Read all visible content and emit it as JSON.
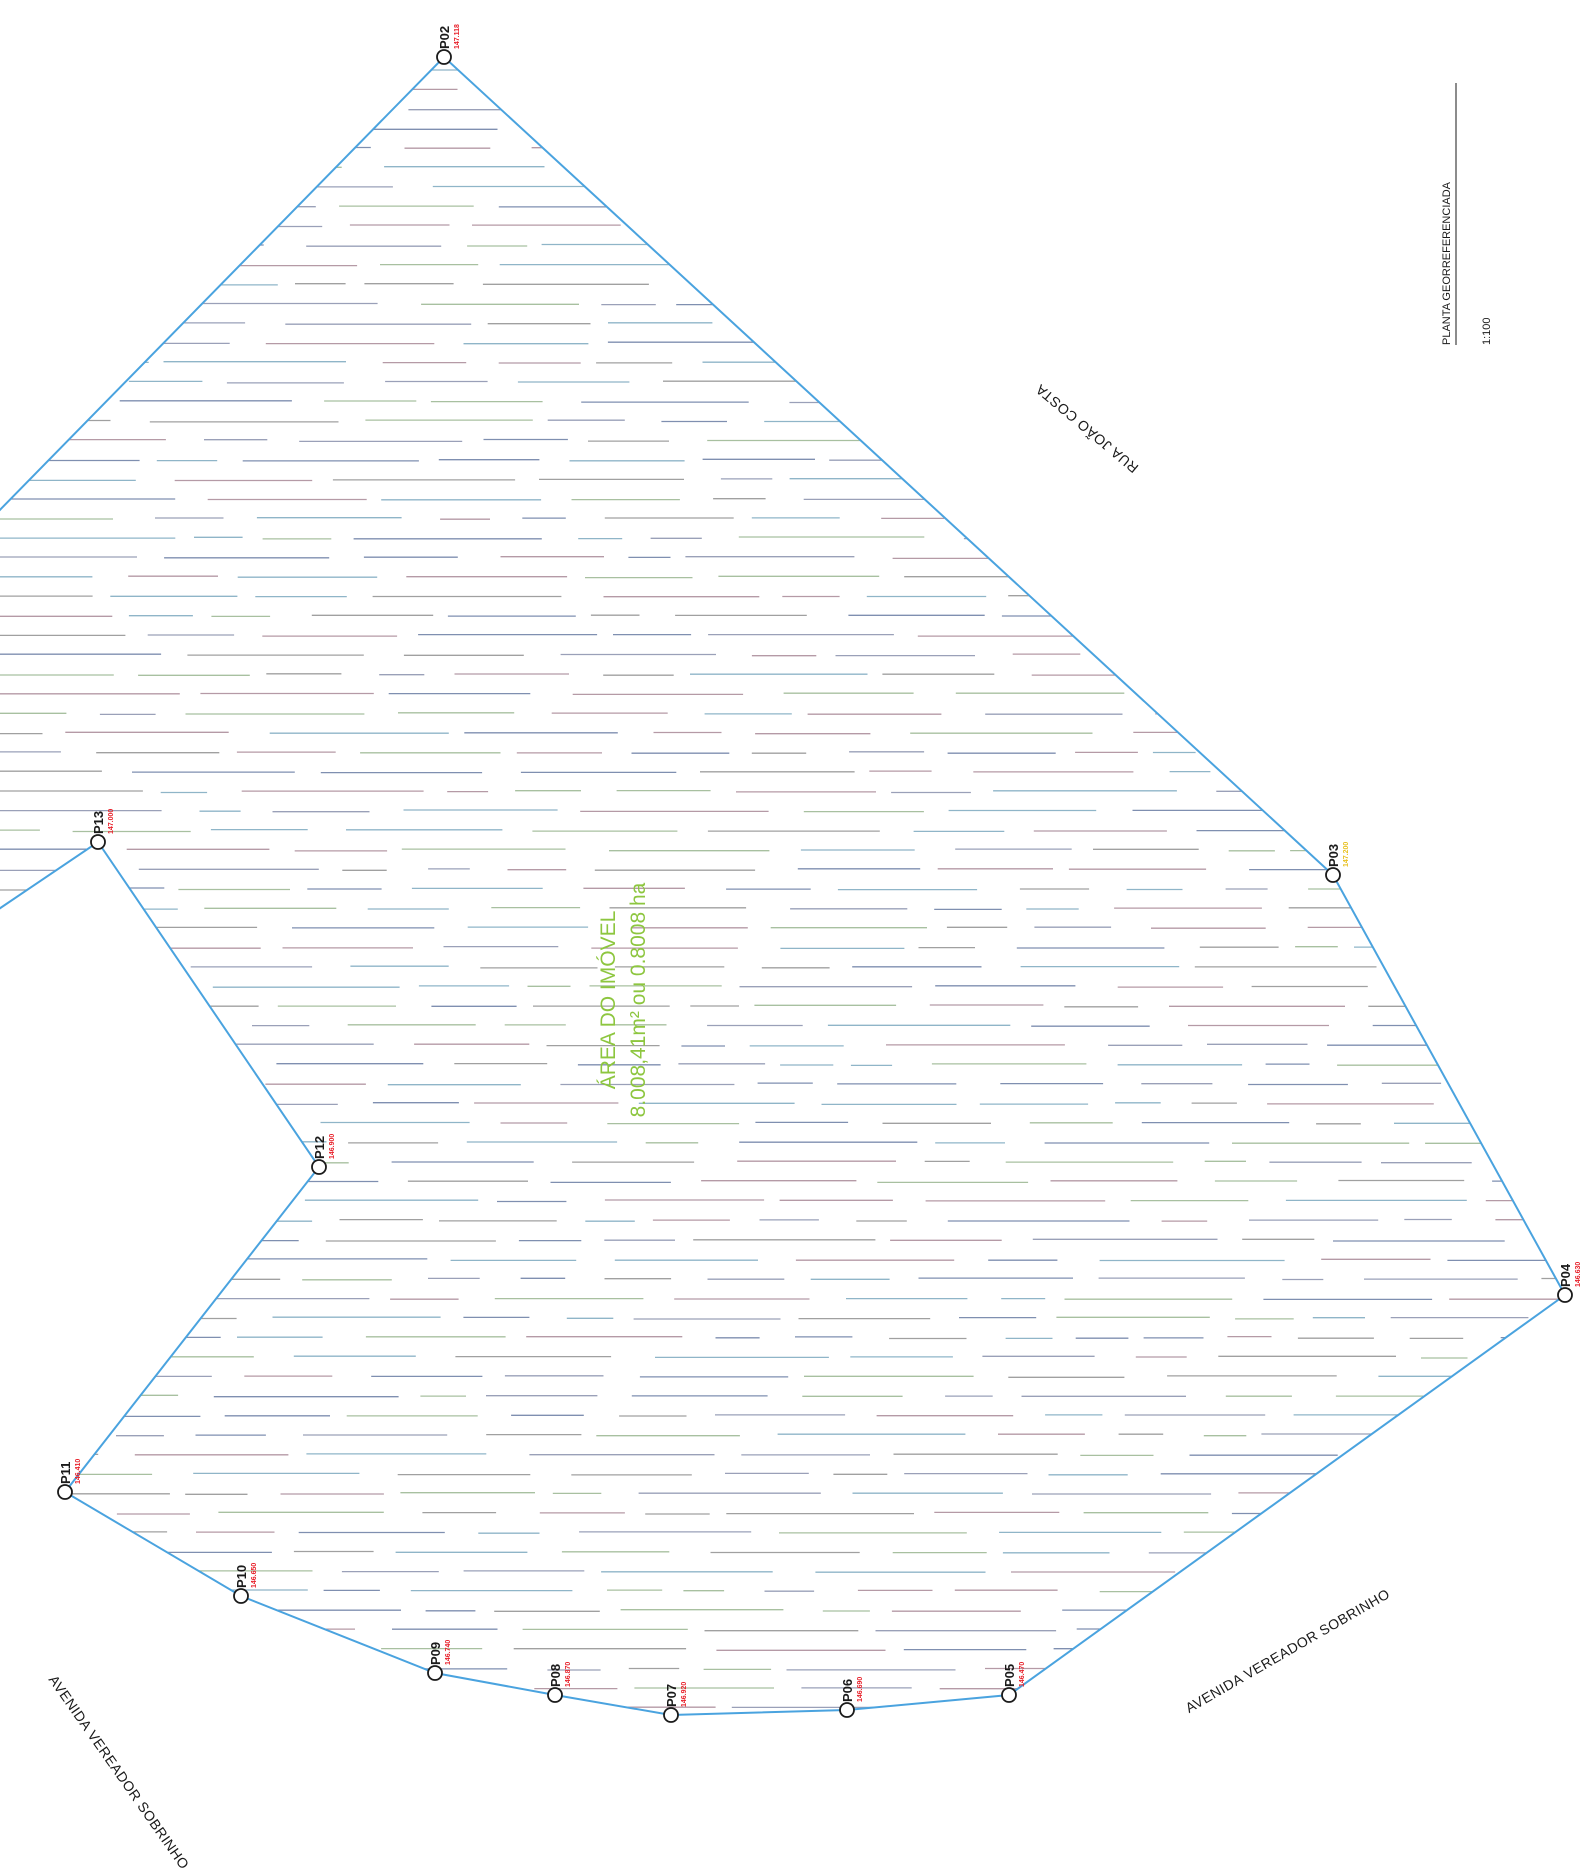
{
  "title": {
    "plan_name": "PLANTA GEORREFERENCIADA",
    "scale": "1:100"
  },
  "area": {
    "heading": "ÁREA DO IMÓVEL",
    "value": "8.008,41m² ou 0.8008 ha",
    "color": "#8dc63f"
  },
  "streets": {
    "top_right": "RUA JOÃO COSTA",
    "bottom_right": "AVENIDA VEREADOR SOBRINHO",
    "bottom_left": "AVENIDA VEREADOR SOBRINHO"
  },
  "colors": {
    "boundary": "#4aa3df",
    "hatch": [
      "#9aa0b8",
      "#8fb5c8",
      "#b59aa6",
      "#a0a0a0",
      "#7f8fb0",
      "#a8c0a0"
    ],
    "elevation": "#e8212b",
    "elevation_alt": "#e8c020"
  },
  "vertices": [
    {
      "id": "P02",
      "elev": "147.118"
    },
    {
      "id": "P03",
      "elev": "147.200"
    },
    {
      "id": "P04",
      "elev": "146.630"
    },
    {
      "id": "P05",
      "elev": "146.470"
    },
    {
      "id": "P06",
      "elev": "146.690"
    },
    {
      "id": "P07",
      "elev": "146.920"
    },
    {
      "id": "P08",
      "elev": "146.870"
    },
    {
      "id": "P09",
      "elev": "146.740"
    },
    {
      "id": "P10",
      "elev": "146.650"
    },
    {
      "id": "P11",
      "elev": "146.410"
    },
    {
      "id": "P12",
      "elev": "146.900"
    },
    {
      "id": "P13",
      "elev": "147.000"
    }
  ]
}
